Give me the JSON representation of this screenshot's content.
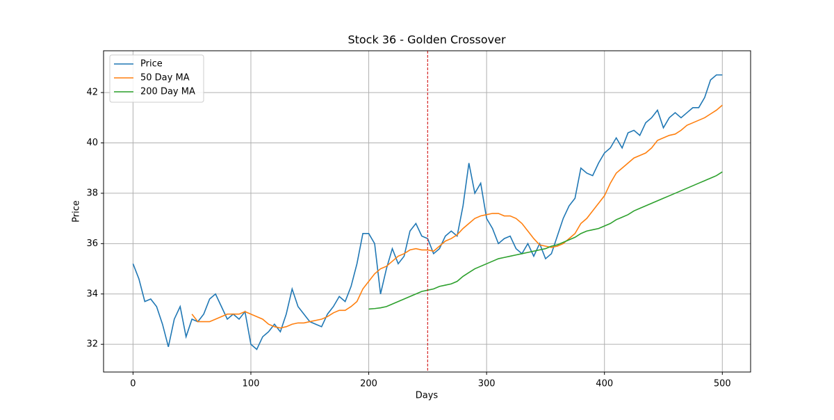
{
  "chart_data": {
    "type": "line",
    "title": "Stock 36 - Golden Crossover",
    "xlabel": "Days",
    "ylabel": "Price",
    "x": [
      0,
      5,
      10,
      15,
      20,
      25,
      30,
      35,
      40,
      45,
      50,
      55,
      60,
      65,
      70,
      75,
      80,
      85,
      90,
      95,
      100,
      105,
      110,
      115,
      120,
      125,
      130,
      135,
      140,
      145,
      150,
      155,
      160,
      165,
      170,
      175,
      180,
      185,
      190,
      195,
      200,
      205,
      210,
      215,
      220,
      225,
      230,
      235,
      240,
      245,
      250,
      255,
      260,
      265,
      270,
      275,
      280,
      285,
      290,
      295,
      300,
      305,
      310,
      315,
      320,
      325,
      330,
      335,
      340,
      345,
      350,
      355,
      360,
      365,
      370,
      375,
      380,
      385,
      390,
      395,
      400,
      405,
      410,
      415,
      420,
      425,
      430,
      435,
      440,
      445,
      450,
      455,
      460,
      465,
      470,
      475,
      480,
      485,
      490,
      495,
      500
    ],
    "series": [
      {
        "name": "Price",
        "color": "#1f77b4",
        "values": [
          35.2,
          34.6,
          33.7,
          33.8,
          33.5,
          32.8,
          31.9,
          33.0,
          33.5,
          32.3,
          33.0,
          32.9,
          33.2,
          33.8,
          34.0,
          33.5,
          33.0,
          33.2,
          33.0,
          33.3,
          32.0,
          31.8,
          32.3,
          32.5,
          32.8,
          32.5,
          33.2,
          34.2,
          33.5,
          33.2,
          32.9,
          32.8,
          32.7,
          33.2,
          33.5,
          33.9,
          33.7,
          34.3,
          35.2,
          36.4,
          36.4,
          36.0,
          34.0,
          35.0,
          35.8,
          35.2,
          35.5,
          36.5,
          36.8,
          36.3,
          36.2,
          35.6,
          35.8,
          36.3,
          36.5,
          36.3,
          37.5,
          39.2,
          38.0,
          38.4,
          37.0,
          36.6,
          36.0,
          36.2,
          36.3,
          35.8,
          35.6,
          36.0,
          35.5,
          36.0,
          35.4,
          35.6,
          36.3,
          37.0,
          37.5,
          37.8,
          39.0,
          38.8,
          38.7,
          39.2,
          39.6,
          39.8,
          40.2,
          39.8,
          40.4,
          40.5,
          40.3,
          40.8,
          41.0,
          41.3,
          40.6,
          41.0,
          41.2,
          41.0,
          41.2,
          41.4,
          41.4,
          41.8,
          42.5,
          42.7,
          42.7
        ]
      },
      {
        "name": "50 Day MA",
        "color": "#ff7f0e",
        "values": [
          null,
          null,
          null,
          null,
          null,
          null,
          null,
          null,
          null,
          null,
          33.2,
          32.9,
          32.9,
          32.9,
          33.0,
          33.1,
          33.2,
          33.2,
          33.2,
          33.3,
          33.2,
          33.1,
          33.0,
          32.8,
          32.7,
          32.65,
          32.7,
          32.8,
          32.85,
          32.85,
          32.9,
          32.95,
          33.0,
          33.1,
          33.25,
          33.35,
          33.35,
          33.5,
          33.7,
          34.2,
          34.5,
          34.8,
          35.0,
          35.1,
          35.3,
          35.5,
          35.6,
          35.75,
          35.8,
          35.75,
          35.75,
          35.7,
          35.9,
          36.1,
          36.2,
          36.35,
          36.6,
          36.8,
          37.0,
          37.1,
          37.15,
          37.2,
          37.2,
          37.1,
          37.1,
          37.0,
          36.8,
          36.5,
          36.2,
          35.95,
          35.9,
          35.85,
          35.9,
          36.0,
          36.2,
          36.4,
          36.8,
          37.0,
          37.3,
          37.6,
          37.9,
          38.4,
          38.8,
          39.0,
          39.2,
          39.4,
          39.5,
          39.6,
          39.8,
          40.1,
          40.2,
          40.3,
          40.35,
          40.5,
          40.7,
          40.8,
          40.9,
          41.0,
          41.15,
          41.3,
          41.5
        ]
      },
      {
        "name": "200 Day MA",
        "color": "#2ca02c",
        "values": [
          null,
          null,
          null,
          null,
          null,
          null,
          null,
          null,
          null,
          null,
          null,
          null,
          null,
          null,
          null,
          null,
          null,
          null,
          null,
          null,
          null,
          null,
          null,
          null,
          null,
          null,
          null,
          null,
          null,
          null,
          null,
          null,
          null,
          null,
          null,
          null,
          null,
          null,
          null,
          null,
          33.4,
          33.42,
          33.45,
          33.5,
          33.6,
          33.7,
          33.8,
          33.9,
          34.0,
          34.1,
          34.15,
          34.2,
          34.3,
          34.35,
          34.4,
          34.5,
          34.7,
          34.85,
          35.0,
          35.1,
          35.2,
          35.3,
          35.4,
          35.45,
          35.5,
          35.55,
          35.6,
          35.65,
          35.7,
          35.75,
          35.8,
          35.9,
          35.95,
          36.05,
          36.15,
          36.25,
          36.4,
          36.5,
          36.55,
          36.6,
          36.7,
          36.8,
          36.95,
          37.05,
          37.15,
          37.3,
          37.4,
          37.5,
          37.6,
          37.7,
          37.8,
          37.9,
          38.0,
          38.1,
          38.2,
          38.3,
          38.4,
          38.5,
          38.6,
          38.7,
          38.85
        ]
      }
    ],
    "vline": {
      "x": 250,
      "color": "#d62728"
    },
    "xlim": [
      -25,
      524
    ],
    "ylim": [
      30.9,
      43.66
    ],
    "xticks": [
      0,
      100,
      200,
      300,
      400,
      500
    ],
    "yticks": [
      32,
      34,
      36,
      38,
      40,
      42
    ],
    "grid": true,
    "legend": "upper left"
  }
}
